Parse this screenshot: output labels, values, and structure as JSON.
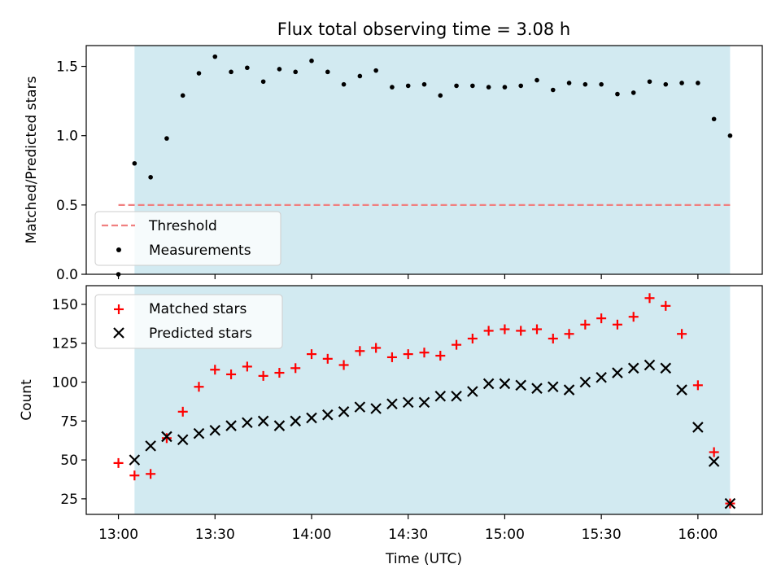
{
  "title": "Flux total observing time = 3.08 h",
  "colors": {
    "shade": "#add8e6",
    "threshold": "#f08080",
    "measurements": "#000000",
    "matched": "#ff0000",
    "predicted": "#000000"
  },
  "chart_data": [
    {
      "type": "scatter",
      "panel": "top",
      "ylabel": "Matched/Predicted stars",
      "ylim": [
        0,
        1.65
      ],
      "yticks": [
        0,
        0.5,
        1.0,
        1.5
      ],
      "ytick_labels": [
        "0.0",
        "0.5",
        "1.0",
        "1.5"
      ],
      "shaded_span": {
        "from_minutes": 5,
        "to_minutes": 190
      },
      "legend": {
        "placement": "lower-left",
        "entries": [
          "Threshold",
          "Measurements"
        ]
      },
      "threshold": {
        "name": "Threshold",
        "value": 0.5,
        "x_range_minutes": [
          0,
          190
        ],
        "style": "dashed"
      },
      "series": [
        {
          "name": "Measurements",
          "marker": "dot",
          "x_minutes": [
            0,
            5,
            10,
            15,
            20,
            25,
            30,
            35,
            40,
            45,
            50,
            55,
            60,
            65,
            70,
            75,
            80,
            85,
            90,
            95,
            100,
            105,
            110,
            115,
            120,
            125,
            130,
            135,
            140,
            145,
            150,
            155,
            160,
            165,
            170,
            175,
            180,
            185,
            190
          ],
          "values": [
            0,
            0.8,
            0.7,
            0.98,
            1.29,
            1.45,
            1.57,
            1.46,
            1.49,
            1.39,
            1.48,
            1.46,
            1.54,
            1.46,
            1.37,
            1.43,
            1.47,
            1.35,
            1.36,
            1.37,
            1.29,
            1.36,
            1.36,
            1.35,
            1.35,
            1.36,
            1.4,
            1.33,
            1.38,
            1.37,
            1.37,
            1.3,
            1.31,
            1.39,
            1.37,
            1.38,
            1.38,
            1.12,
            1.0
          ]
        }
      ]
    },
    {
      "type": "scatter",
      "panel": "bottom",
      "xlabel": "Time (UTC)",
      "ylabel": "Count",
      "xlim_minutes": [
        -10,
        200
      ],
      "ylim": [
        15,
        162
      ],
      "xticks_minutes": [
        0,
        30,
        60,
        90,
        120,
        150,
        180
      ],
      "xtick_labels": [
        "13:00",
        "13:30",
        "14:00",
        "14:30",
        "15:00",
        "15:30",
        "16:00"
      ],
      "yticks": [
        25,
        50,
        75,
        100,
        125,
        150
      ],
      "ytick_labels": [
        "25",
        "50",
        "75",
        "100",
        "125",
        "150"
      ],
      "shaded_span": {
        "from_minutes": 5,
        "to_minutes": 190
      },
      "legend": {
        "placement": "upper-left",
        "entries": [
          "Matched stars",
          "Predicted stars"
        ]
      },
      "series": [
        {
          "name": "Matched stars",
          "marker": "plus",
          "x_minutes": [
            0,
            5,
            10,
            15,
            20,
            25,
            30,
            35,
            40,
            45,
            50,
            55,
            60,
            65,
            70,
            75,
            80,
            85,
            90,
            95,
            100,
            105,
            110,
            115,
            120,
            125,
            130,
            135,
            140,
            145,
            150,
            155,
            160,
            165,
            170,
            175,
            180,
            185,
            190
          ],
          "values": [
            48,
            40,
            41,
            64,
            81,
            97,
            108,
            105,
            110,
            104,
            106,
            109,
            118,
            115,
            111,
            120,
            122,
            116,
            118,
            119,
            117,
            124,
            128,
            133,
            134,
            133,
            134,
            128,
            131,
            137,
            141,
            137,
            142,
            154,
            149,
            131,
            98,
            55,
            22
          ]
        },
        {
          "name": "Predicted stars",
          "marker": "x",
          "x_minutes": [
            5,
            10,
            15,
            20,
            25,
            30,
            35,
            40,
            45,
            50,
            55,
            60,
            65,
            70,
            75,
            80,
            85,
            90,
            95,
            100,
            105,
            110,
            115,
            120,
            125,
            130,
            135,
            140,
            145,
            150,
            155,
            160,
            165,
            170,
            175,
            180,
            185,
            190
          ],
          "values": [
            50,
            59,
            65,
            63,
            67,
            69,
            72,
            74,
            75,
            72,
            75,
            77,
            79,
            81,
            84,
            83,
            86,
            87,
            87,
            91,
            91,
            94,
            99,
            99,
            98,
            96,
            97,
            95,
            100,
            103,
            106,
            109,
            111,
            109,
            95,
            71,
            49,
            22
          ]
        }
      ]
    }
  ]
}
